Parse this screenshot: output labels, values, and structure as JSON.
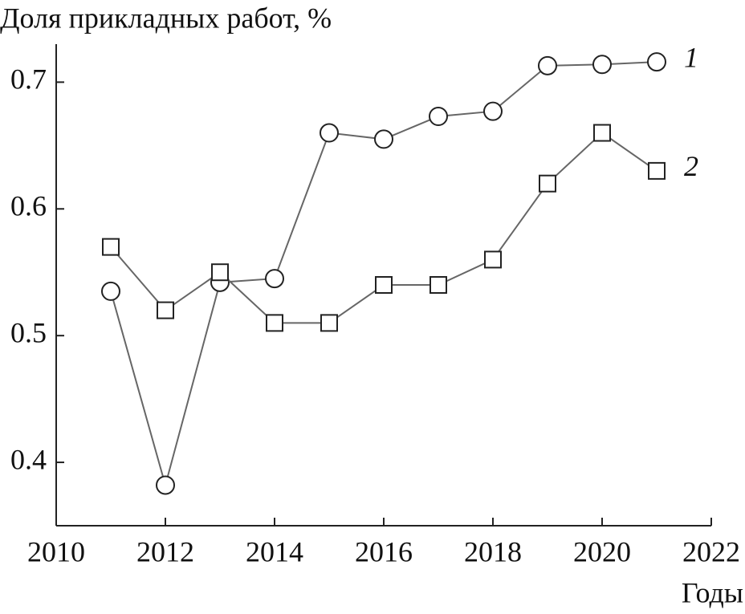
{
  "chart_data": {
    "type": "line",
    "title": "Доля прикладных работ, %",
    "x_label": "Годы",
    "x": [
      2011,
      2012,
      2013,
      2014,
      2015,
      2016,
      2017,
      2018,
      2019,
      2020,
      2021
    ],
    "series": [
      {
        "name": "1",
        "color": "#666666",
        "marker": "circle",
        "values": [
          0.535,
          0.382,
          0.542,
          0.545,
          0.66,
          0.655,
          0.673,
          0.677,
          0.713,
          0.714,
          0.716
        ]
      },
      {
        "name": "2",
        "color": "#666666",
        "marker": "square",
        "values": [
          0.57,
          0.52,
          0.55,
          0.51,
          0.51,
          0.54,
          0.54,
          0.56,
          0.62,
          0.66,
          0.63
        ]
      }
    ],
    "xlim": [
      2010,
      2022
    ],
    "xticks": [
      2010,
      2012,
      2014,
      2016,
      2018,
      2020,
      2022
    ],
    "ylim": [
      0.35,
      0.73
    ],
    "yticks": [
      0.4,
      0.5,
      0.6,
      0.7
    ],
    "grid": false
  }
}
